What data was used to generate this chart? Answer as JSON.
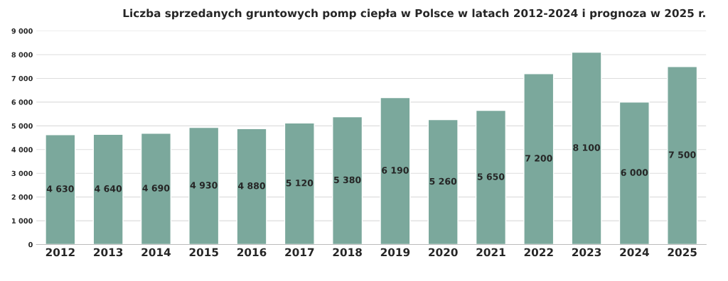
{
  "chart_data": {
    "type": "bar",
    "title": "Liczba sprzedanych gruntowych pomp ciepła w Polsce w latach 2012-2024 i prognoza w 2025 r.",
    "categories": [
      "2012",
      "2013",
      "2014",
      "2015",
      "2016",
      "2017",
      "2018",
      "2019",
      "2020",
      "2021",
      "2022",
      "2023",
      "2024",
      "2025"
    ],
    "values": [
      4630,
      4640,
      4690,
      4930,
      4880,
      5120,
      5380,
      6190,
      5260,
      5650,
      7200,
      8100,
      6000,
      7500
    ],
    "color": "#7ba89c",
    "value_labels": [
      "4 630",
      "4 640",
      "4 690",
      "4 930",
      "4 880",
      "5 120",
      "5 380",
      "6 190",
      "5 260",
      "5 650",
      "7 200",
      "8 100",
      "6 000",
      "7 500"
    ],
    "ylim": [
      0,
      9000
    ],
    "yticks": [
      {
        "value": 0,
        "label": "0"
      },
      {
        "value": 1000,
        "label": "1 000"
      },
      {
        "value": 2000,
        "label": "2 000"
      },
      {
        "value": 3000,
        "label": "3 000"
      },
      {
        "value": 4000,
        "label": "4 000"
      },
      {
        "value": 5000,
        "label": "5 000"
      },
      {
        "value": 6000,
        "label": "6 000"
      },
      {
        "value": 7000,
        "label": "7 000"
      },
      {
        "value": 8000,
        "label": "8 000"
      },
      {
        "value": 9000,
        "label": "9 000"
      }
    ],
    "grid": "y"
  }
}
